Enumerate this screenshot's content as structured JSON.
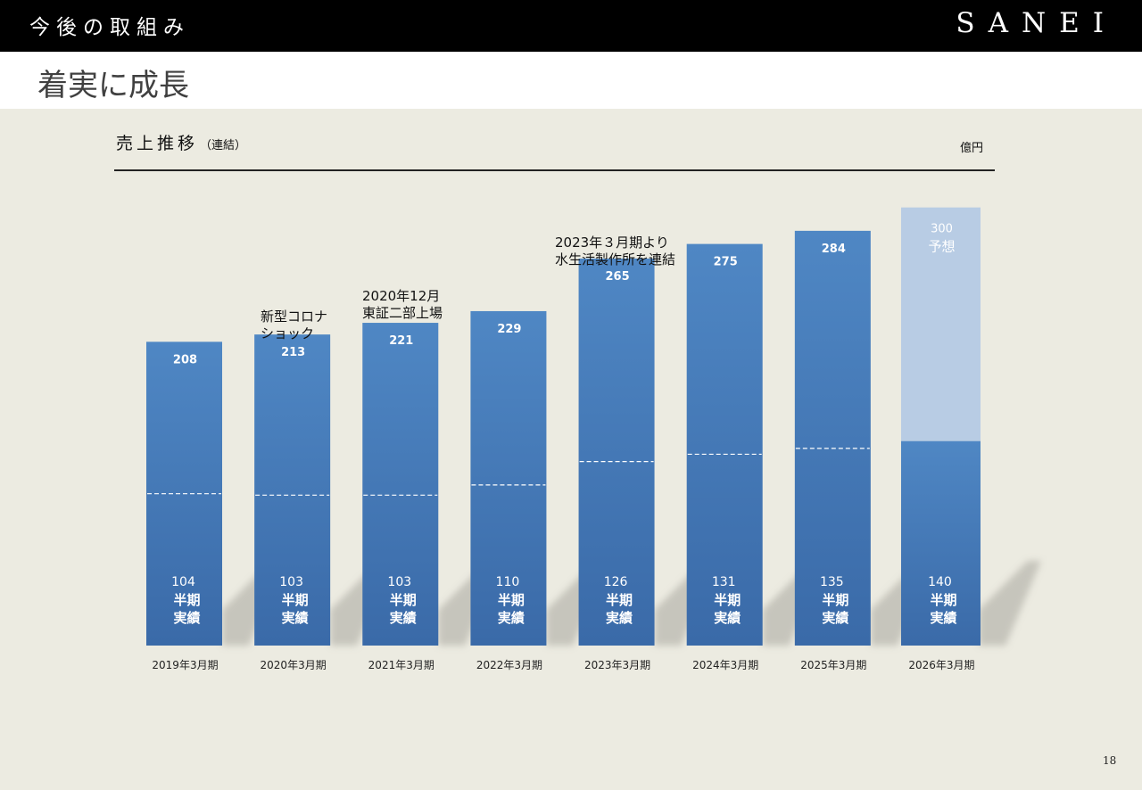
{
  "header": {
    "section_title": "今後の取組み",
    "logo": "SANEI",
    "page_title": "着実に成長"
  },
  "chart_data": {
    "type": "bar",
    "title": "売上推移",
    "subtitle": "（連結）",
    "unit": "億円",
    "categories": [
      "2019年3月期",
      "2020年3月期",
      "2021年3月期",
      "2022年3月期",
      "2023年3月期",
      "2024年3月期",
      "2025年3月期",
      "2026年3月期"
    ],
    "totals": [
      208,
      213,
      221,
      229,
      265,
      275,
      284,
      300
    ],
    "half_year": [
      104,
      103,
      103,
      110,
      126,
      131,
      135,
      140
    ],
    "half_label": "半期\n実績",
    "forecast_label": "予想",
    "forecast_index": 7,
    "ylim": [
      0,
      300
    ],
    "annotations": [
      {
        "text": "新型コロナ\nショック",
        "category": "2020年3月期"
      },
      {
        "text": "2020年12月\n東証二部上場",
        "category": "2021年3月期"
      },
      {
        "text": "2023年３月期より\n水生活製作所を連結",
        "category": "2023年3月期"
      }
    ],
    "colors": {
      "bar_top": "#4f87c4",
      "bar_bottom": "#3a6aa8",
      "forecast": "#b8cce4",
      "shadow": "#bdbcb3"
    }
  },
  "footer": {
    "page_number": "18"
  }
}
